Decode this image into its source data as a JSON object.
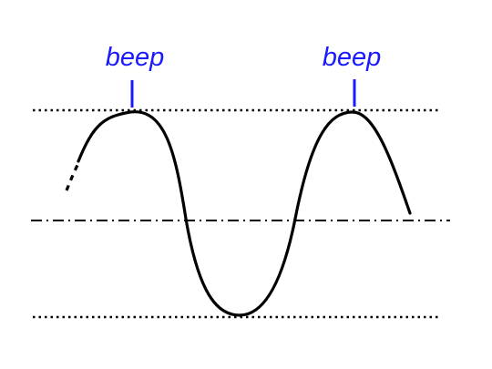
{
  "labels": {
    "peak_1": "beep",
    "peak_2": "beep"
  },
  "colors": {
    "curve": "#000000",
    "label": "#1a1aff",
    "marker": "#1a1aff",
    "reference_lines": "#000000",
    "background": "#ffffff"
  }
}
